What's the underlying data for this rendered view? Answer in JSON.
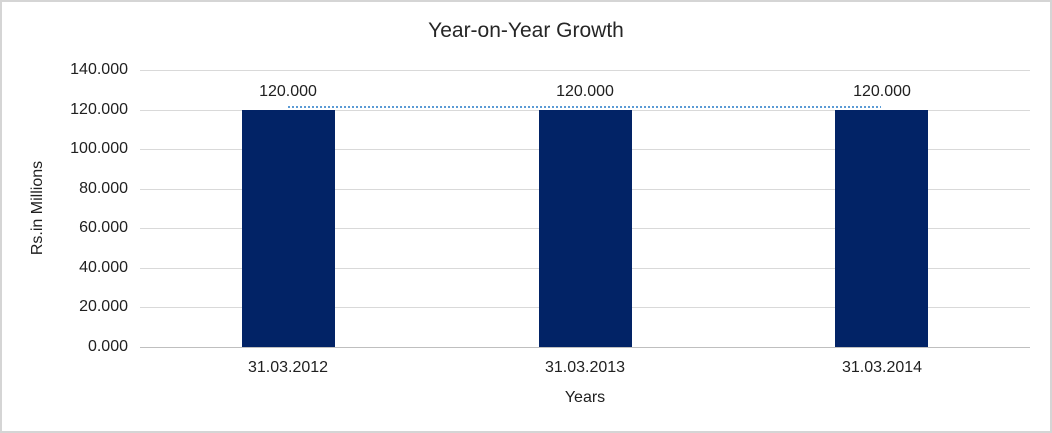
{
  "chart_data": {
    "type": "bar",
    "title": "Year-on-Year Growth",
    "xlabel": "Years",
    "ylabel": "Rs.in Millions",
    "categories": [
      "31.03.2012",
      "31.03.2013",
      "31.03.2014"
    ],
    "values": [
      120,
      120,
      120
    ],
    "data_labels": [
      "120.000",
      "120.000",
      "120.000"
    ],
    "ylim": [
      0,
      140
    ],
    "yticks": [
      0,
      20,
      40,
      60,
      80,
      100,
      120,
      140
    ],
    "ytick_labels": [
      "0.000",
      "20.000",
      "40.000",
      "60.000",
      "80.000",
      "100.000",
      "120.000",
      "140.000"
    ],
    "grid": "horizontal",
    "legend": "none",
    "trendline": {
      "type": "linear",
      "style": "dotted",
      "level": 120,
      "color": "#5b9bd5"
    },
    "colors": {
      "bar": "#022366",
      "trendline": "#5b9bd5",
      "gridline": "#d9d9d9",
      "axis_line": "#bfbfbf",
      "text": "#202020",
      "frame_border": "#d5d5d5"
    }
  }
}
